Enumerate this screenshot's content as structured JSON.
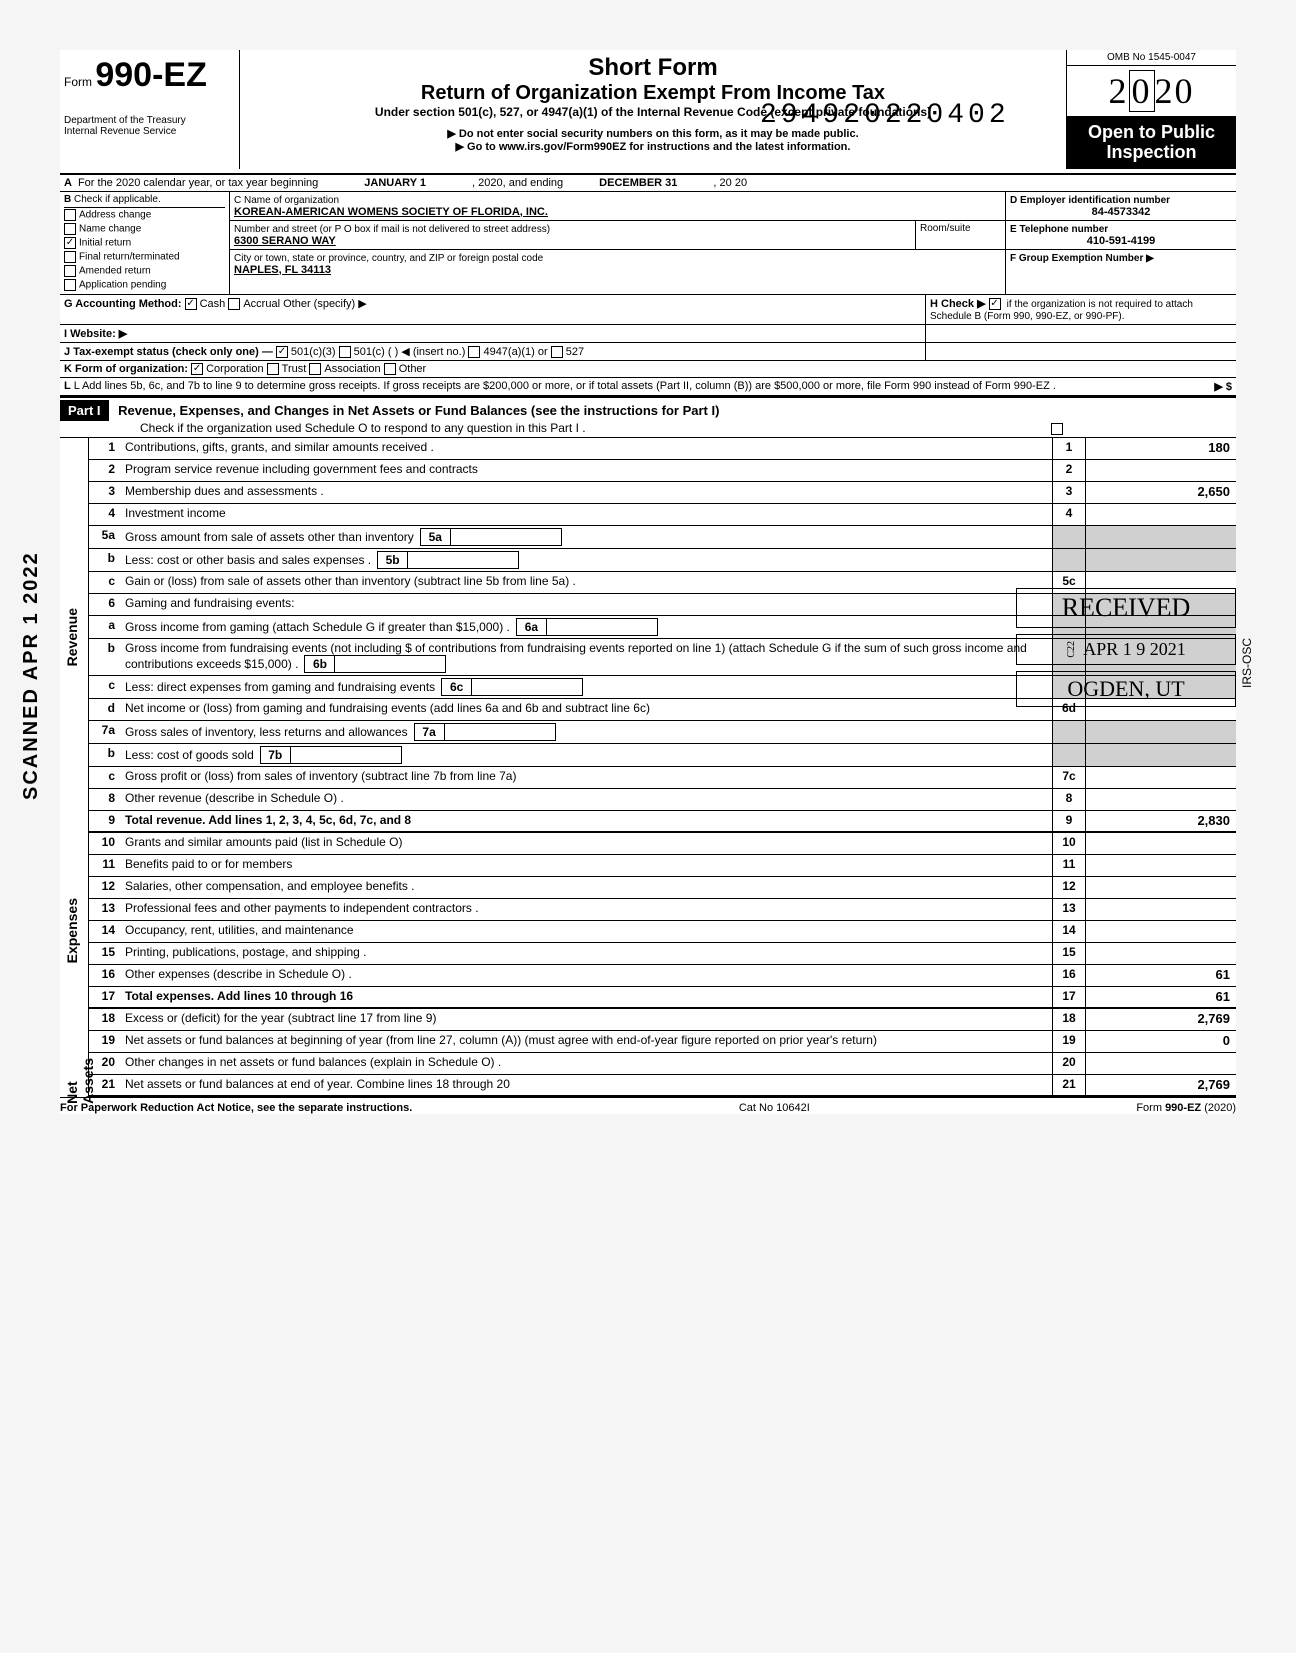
{
  "meta": {
    "stamp_number": "294920220402",
    "scan_label": "SCANNED APR 1 2022",
    "irs_osc": "IRS-OSC"
  },
  "header": {
    "form_prefix": "Form",
    "form_number": "990-EZ",
    "title1": "Short Form",
    "title2": "Return of Organization Exempt From Income Tax",
    "subtitle": "Under section 501(c), 527, or 4947(a)(1) of the Internal Revenue Code (except private foundations)",
    "note1": "▶ Do not enter social security numbers on this form, as it may be made public.",
    "note2": "▶ Go to www.irs.gov/Form990EZ for instructions and the latest information.",
    "dept": "Department of the Treasury\nInternal Revenue Service",
    "omb": "OMB No 1545-0047",
    "year": "2020",
    "open": "Open to Public Inspection"
  },
  "lineA": {
    "text": "For the 2020 calendar year, or tax year beginning",
    "begin": "JANUARY 1",
    "mid": ", 2020, and ending",
    "end": "DECEMBER 31",
    "yr": ", 20   20"
  },
  "boxB": {
    "label": "B  Check if applicable.",
    "items": [
      {
        "label": "Address change",
        "checked": false
      },
      {
        "label": "Name change",
        "checked": false
      },
      {
        "label": "Initial return",
        "checked": true
      },
      {
        "label": "Final return/terminated",
        "checked": false
      },
      {
        "label": "Amended return",
        "checked": false
      },
      {
        "label": "Application pending",
        "checked": false
      }
    ]
  },
  "boxC": {
    "name_label": "C Name of organization",
    "name": "KOREAN-AMERICAN WOMENS SOCIETY OF FLORIDA, INC.",
    "addr_label": "Number and street (or P O  box if mail is not delivered to street address)",
    "room_label": "Room/suite",
    "addr": "6300 SERANO WAY",
    "city_label": "City or town, state or province, country, and ZIP or foreign postal code",
    "city": "NAPLES, FL 34113"
  },
  "boxD": {
    "label": "D Employer identification number",
    "value": "84-4573342"
  },
  "boxE": {
    "label": "E Telephone number",
    "value": "410-591-4199"
  },
  "boxF": {
    "label": "F Group Exemption Number ▶",
    "value": ""
  },
  "lineG": {
    "label": "G  Accounting Method:",
    "cash": "Cash",
    "accrual": "Accrual",
    "other": "Other (specify) ▶"
  },
  "lineH": {
    "text": "H Check ▶",
    "tail": "if the organization is not required to attach Schedule B (Form 990, 990-EZ, or 990-PF)."
  },
  "lineI": {
    "label": "I  Website: ▶"
  },
  "lineJ": {
    "label": "J  Tax-exempt status (check only one) —",
    "o1": "501(c)(3)",
    "o2": "501(c) (",
    "o2b": ")  ◀ (insert no.)",
    "o3": "4947(a)(1) or",
    "o4": "527"
  },
  "lineK": {
    "label": "K Form of organization:",
    "corp": "Corporation",
    "trust": "Trust",
    "assoc": "Association",
    "other": "Other"
  },
  "lineL": {
    "text": "L Add lines 5b, 6c, and 7b to line 9 to determine gross receipts. If gross receipts are $200,000 or more, or if total assets (Part II, column (B)) are $500,000 or more, file Form 990 instead of Form 990-EZ .",
    "arrow": "▶  $"
  },
  "part1": {
    "label": "Part I",
    "title": "Revenue, Expenses, and Changes in Net Assets or Fund Balances (see the instructions for Part I)",
    "checknote": "Check if the organization used Schedule O to respond to any question in this Part I ."
  },
  "side_labels": {
    "revenue": "Revenue",
    "expenses": "Expenses",
    "netassets": "Net Assets"
  },
  "lines": {
    "1": {
      "n": "1",
      "t": "Contributions, gifts, grants, and similar amounts received .",
      "box": "1",
      "amt": "180"
    },
    "2": {
      "n": "2",
      "t": "Program service revenue including government fees and contracts",
      "box": "2",
      "amt": ""
    },
    "3": {
      "n": "3",
      "t": "Membership dues and assessments .",
      "box": "3",
      "amt": "2,650"
    },
    "4": {
      "n": "4",
      "t": "Investment income",
      "box": "4",
      "amt": ""
    },
    "5a": {
      "n": "5a",
      "t": "Gross amount from sale of assets other than inventory",
      "ibox": "5a"
    },
    "5b": {
      "n": "b",
      "t": "Less: cost or other basis and sales expenses .",
      "ibox": "5b"
    },
    "5c": {
      "n": "c",
      "t": "Gain or (loss) from sale of assets other than inventory (subtract line 5b from line 5a) .",
      "box": "5c",
      "amt": ""
    },
    "6": {
      "n": "6",
      "t": "Gaming and fundraising events:"
    },
    "6a": {
      "n": "a",
      "t": "Gross income from gaming (attach Schedule G if greater than $15,000) .",
      "ibox": "6a"
    },
    "6b": {
      "n": "b",
      "t": "Gross income from fundraising events (not including  $                    of contributions from fundraising events reported on line 1) (attach Schedule G if the sum of such gross income and contributions exceeds $15,000) .",
      "ibox": "6b"
    },
    "6c": {
      "n": "c",
      "t": "Less: direct expenses from gaming and fundraising events",
      "ibox": "6c"
    },
    "6d": {
      "n": "d",
      "t": "Net income or (loss) from gaming and fundraising events (add lines 6a and 6b and subtract line 6c)",
      "box": "6d",
      "amt": ""
    },
    "7a": {
      "n": "7a",
      "t": "Gross sales of inventory, less returns and allowances",
      "ibox": "7a"
    },
    "7b": {
      "n": "b",
      "t": "Less: cost of goods sold",
      "ibox": "7b"
    },
    "7c": {
      "n": "c",
      "t": "Gross profit or (loss) from sales of inventory (subtract line 7b from line 7a)",
      "box": "7c",
      "amt": ""
    },
    "8": {
      "n": "8",
      "t": "Other revenue (describe in Schedule O) .",
      "box": "8",
      "amt": ""
    },
    "9": {
      "n": "9",
      "t": "Total revenue. Add lines 1, 2, 3, 4, 5c, 6d, 7c, and 8",
      "box": "9",
      "amt": "2,830",
      "bold": true
    },
    "10": {
      "n": "10",
      "t": "Grants and similar amounts paid (list in Schedule O)",
      "box": "10",
      "amt": ""
    },
    "11": {
      "n": "11",
      "t": "Benefits paid to or for members",
      "box": "11",
      "amt": ""
    },
    "12": {
      "n": "12",
      "t": "Salaries, other compensation, and employee benefits .",
      "box": "12",
      "amt": ""
    },
    "13": {
      "n": "13",
      "t": "Professional fees and other payments to independent contractors .",
      "box": "13",
      "amt": ""
    },
    "14": {
      "n": "14",
      "t": "Occupancy, rent, utilities, and maintenance",
      "box": "14",
      "amt": ""
    },
    "15": {
      "n": "15",
      "t": "Printing, publications, postage, and shipping .",
      "box": "15",
      "amt": ""
    },
    "16": {
      "n": "16",
      "t": "Other expenses (describe in Schedule O) .",
      "box": "16",
      "amt": "61"
    },
    "17": {
      "n": "17",
      "t": "Total expenses. Add lines 10 through 16",
      "box": "17",
      "amt": "61",
      "bold": true
    },
    "18": {
      "n": "18",
      "t": "Excess or (deficit) for the year (subtract line 17 from line 9)",
      "box": "18",
      "amt": "2,769"
    },
    "19": {
      "n": "19",
      "t": "Net assets or fund balances at beginning of year (from line 27, column (A)) (must agree with end-of-year figure reported on prior year's return)",
      "box": "19",
      "amt": "0"
    },
    "20": {
      "n": "20",
      "t": "Other changes in net assets or fund balances (explain in Schedule O) .",
      "box": "20",
      "amt": ""
    },
    "21": {
      "n": "21",
      "t": "Net assets or fund balances at end of year. Combine lines 18 through 20",
      "box": "21",
      "amt": "2,769"
    }
  },
  "received": {
    "rx": "RECEIVED",
    "date": "APR 1 9 2021",
    "c22": "C22",
    "og": "OGDEN, UT"
  },
  "footer": {
    "left": "For Paperwork Reduction Act Notice, see the separate instructions.",
    "mid": "Cat No  10642I",
    "right": "Form 990-EZ (2020)"
  }
}
